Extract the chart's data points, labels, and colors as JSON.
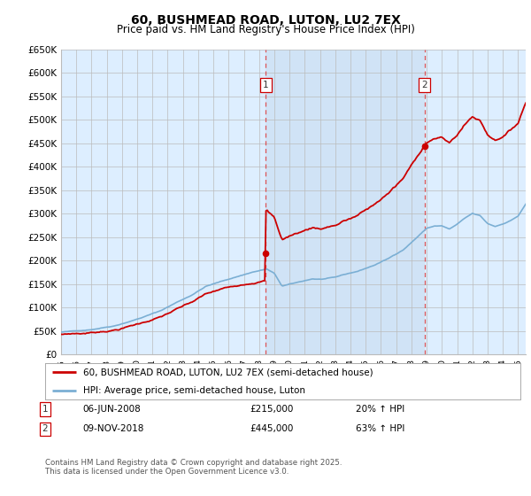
{
  "title": "60, BUSHMEAD ROAD, LUTON, LU2 7EX",
  "subtitle": "Price paid vs. HM Land Registry's House Price Index (HPI)",
  "ylim": [
    0,
    650000
  ],
  "xlim_start": 1995.0,
  "xlim_end": 2025.5,
  "sale1_x": 2008.44,
  "sale1_y": 215000,
  "sale2_x": 2018.86,
  "sale2_y": 445000,
  "sale1_label": "06-JUN-2008",
  "sale2_label": "09-NOV-2018",
  "sale1_pct": "20% ↑ HPI",
  "sale2_pct": "63% ↑ HPI",
  "legend_house": "60, BUSHMEAD ROAD, LUTON, LU2 7EX (semi-detached house)",
  "legend_hpi": "HPI: Average price, semi-detached house, Luton",
  "footer": "Contains HM Land Registry data © Crown copyright and database right 2025.\nThis data is licensed under the Open Government Licence v3.0.",
  "red_color": "#cc0000",
  "blue_color": "#7bafd4",
  "shade_color": "#ddeeff",
  "background_color": "#ddeeff",
  "grid_color": "#bbbbbb",
  "title_fontsize": 10,
  "subtitle_fontsize": 8.5
}
